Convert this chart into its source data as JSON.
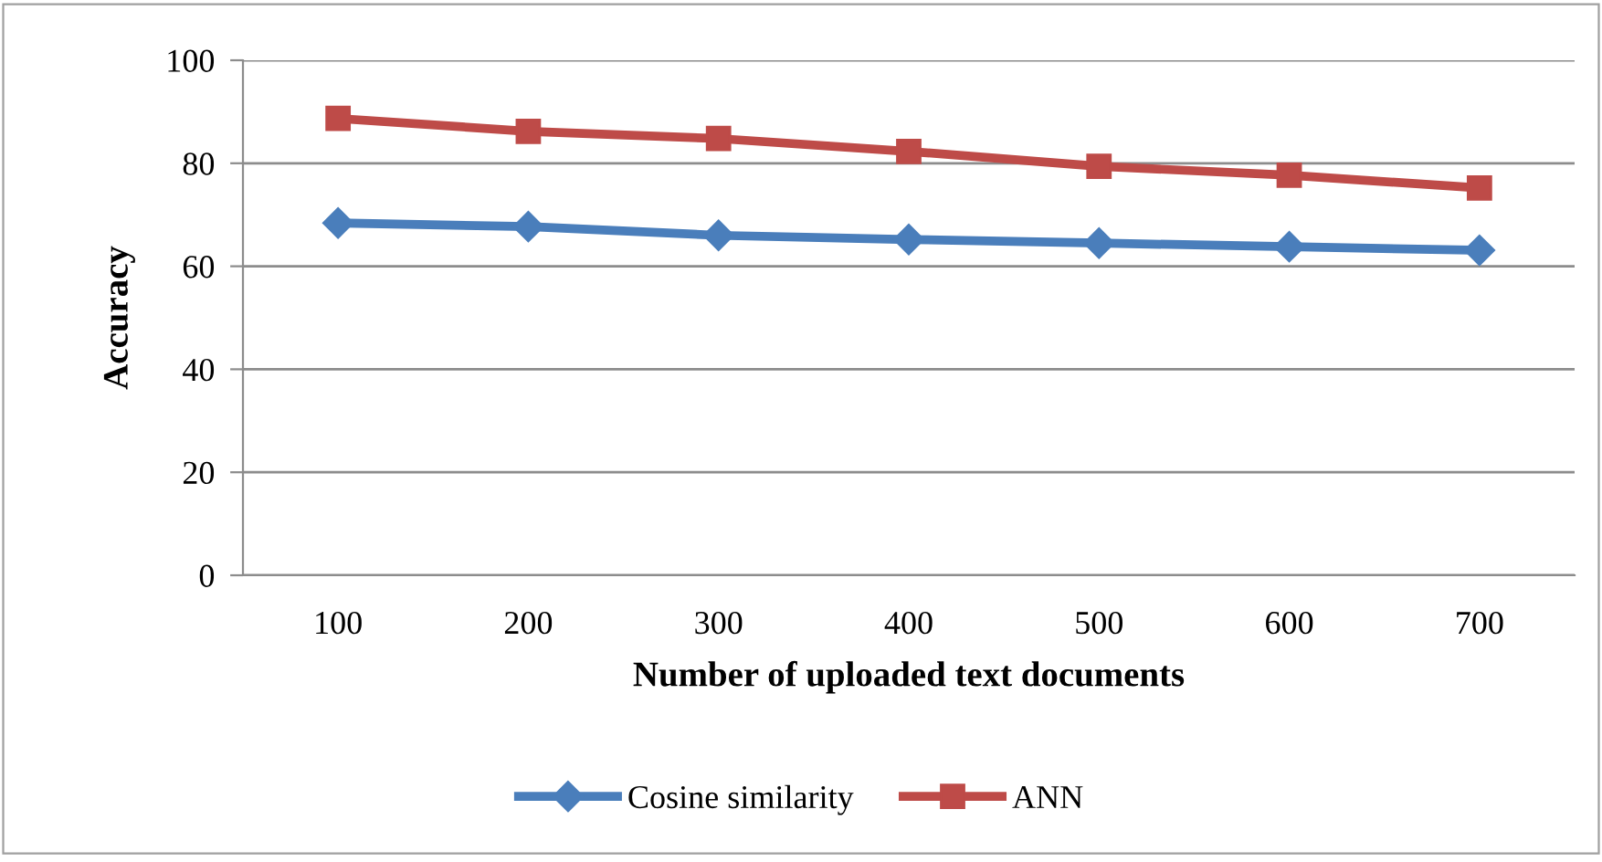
{
  "chart_data": {
    "type": "line",
    "xlabel": "Number of uploaded text documents",
    "ylabel": "Accuracy",
    "categories": [
      "100",
      "200",
      "300",
      "400",
      "500",
      "600",
      "700"
    ],
    "series": [
      {
        "name": "Cosine similarity",
        "color": "#4a7ebb",
        "marker": "diamond",
        "values": [
          68.4,
          67.7,
          66,
          65.2,
          64.5,
          63.8,
          63.1
        ]
      },
      {
        "name": "ANN",
        "color": "#be4b48",
        "marker": "square",
        "values": [
          88.7,
          86.2,
          84.8,
          82.3,
          79.4,
          77.7,
          75.2
        ]
      }
    ],
    "ylim": [
      0,
      100
    ],
    "yticks": [
      0,
      20,
      40,
      60,
      80,
      100
    ],
    "grid": "y",
    "legend": "bottom",
    "line_style": "solid"
  }
}
